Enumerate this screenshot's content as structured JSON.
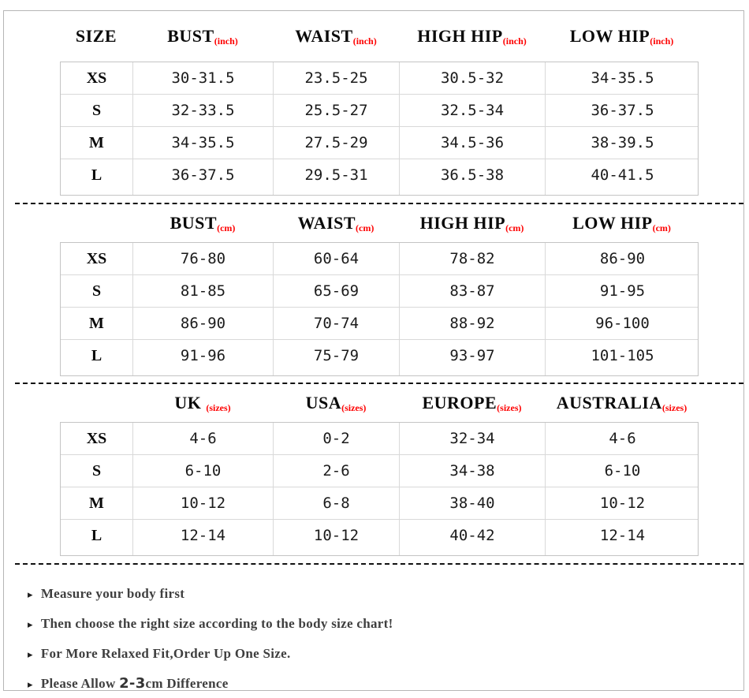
{
  "colors": {
    "accent_red": "#fe0000",
    "header_text": "#0a0a0a",
    "cell_text": "#1b1b1b",
    "grid_border": "#c4c4c4",
    "grid_line": "#d9d9d9",
    "frame_border": "#b6b6b6",
    "note_text": "#3f3f3f"
  },
  "tables": [
    {
      "id": "inch",
      "unit": "(inch)",
      "size_header": "SIZE",
      "columns": [
        "BUST",
        "WAIST",
        "HIGH HIP",
        "LOW HIP"
      ],
      "rows": [
        {
          "size": "XS",
          "values": [
            "30-31.5",
            "23.5-25",
            "30.5-32",
            "34-35.5"
          ]
        },
        {
          "size": "S",
          "values": [
            "32-33.5",
            "25.5-27",
            "32.5-34",
            "36-37.5"
          ]
        },
        {
          "size": "M",
          "values": [
            "34-35.5",
            "27.5-29",
            "34.5-36",
            "38-39.5"
          ]
        },
        {
          "size": "L",
          "values": [
            "36-37.5",
            "29.5-31",
            "36.5-38",
            "40-41.5"
          ]
        }
      ]
    },
    {
      "id": "cm",
      "unit": "(cm)",
      "size_header": "",
      "columns": [
        "BUST",
        "WAIST",
        "HIGH HIP",
        "LOW HIP"
      ],
      "rows": [
        {
          "size": "XS",
          "values": [
            "76-80",
            "60-64",
            "78-82",
            "86-90"
          ]
        },
        {
          "size": "S",
          "values": [
            "81-85",
            "65-69",
            "83-87",
            "91-95"
          ]
        },
        {
          "size": "M",
          "values": [
            "86-90",
            "70-74",
            "88-92",
            "96-100"
          ]
        },
        {
          "size": "L",
          "values": [
            "91-96",
            "75-79",
            "93-97",
            "101-105"
          ]
        }
      ]
    },
    {
      "id": "international",
      "unit": "(sizes)",
      "size_header": "",
      "columns": [
        "UK ",
        "USA",
        "EUROPE",
        "AUSTRALIA"
      ],
      "rows": [
        {
          "size": "XS",
          "values": [
            "4-6",
            "0-2",
            "32-34",
            "4-6"
          ]
        },
        {
          "size": "S",
          "values": [
            "6-10",
            "2-6",
            "34-38",
            "6-10"
          ]
        },
        {
          "size": "M",
          "values": [
            "10-12",
            "6-8",
            "38-40",
            "10-12"
          ]
        },
        {
          "size": "L",
          "values": [
            "12-14",
            "10-12",
            "40-42",
            "12-14"
          ]
        }
      ]
    }
  ],
  "notes": {
    "marker": "▸",
    "items": [
      {
        "text": "Measure your body first"
      },
      {
        "text": "Then choose the right size according to the body size chart!"
      },
      {
        "text": "For More Relaxed Fit,Order Up One Size."
      },
      {
        "before": "Please Allow ",
        "em": "2-3",
        "after": "cm Difference"
      }
    ]
  }
}
